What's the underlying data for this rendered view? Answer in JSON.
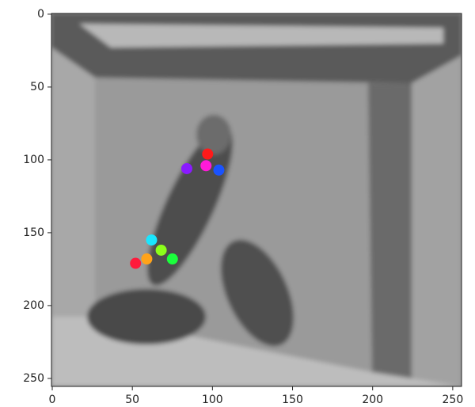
{
  "chart_data": {
    "type": "scatter",
    "x": [
      97,
      84,
      96,
      104,
      62,
      68,
      75,
      59,
      52
    ],
    "y": [
      96,
      106,
      104,
      107,
      155,
      162,
      168,
      168,
      171
    ],
    "colors": [
      "#ff1a1a",
      "#8a1aff",
      "#ff1ad9",
      "#1a53ff",
      "#1ae6ff",
      "#8cff1a",
      "#1aff3c",
      "#ffa31a",
      "#ff1a3c"
    ],
    "xlim": [
      -0.5,
      255.5
    ],
    "ylim": [
      255.5,
      -0.5
    ],
    "xticks": [
      0,
      50,
      100,
      150,
      200,
      250
    ],
    "yticks": [
      0,
      50,
      100,
      150,
      200,
      250
    ]
  }
}
